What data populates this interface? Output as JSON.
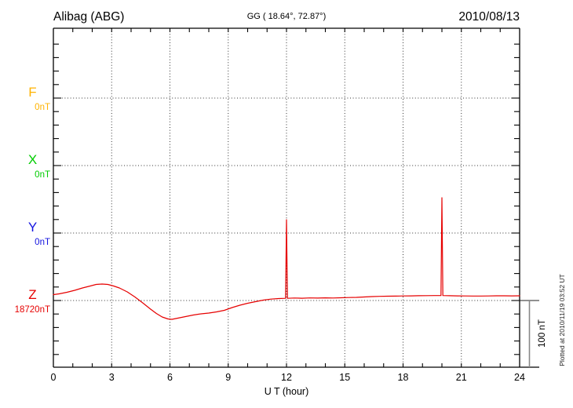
{
  "header": {
    "station": "Alibag (ABG)",
    "coordinates": "GG ( 18.64°, 72.87°)",
    "date": "2010/08/13"
  },
  "components": [
    {
      "label": "F",
      "value": "0nT",
      "color": "#FFB300"
    },
    {
      "label": "X",
      "value": "0nT",
      "color": "#00CC00"
    },
    {
      "label": "Y",
      "value": "0nT",
      "color": "#1414E0"
    },
    {
      "label": "Z",
      "value": "18720nT",
      "color": "#E60000"
    }
  ],
  "x_axis": {
    "title": "U T (hour)",
    "tick_labels": [
      0,
      3,
      6,
      9,
      12,
      15,
      18,
      21,
      24
    ],
    "hours": 24
  },
  "scale_bar": {
    "label": "100 nT",
    "nT": 100
  },
  "plotted_note": "Plotted at 2010/11/19 03:52 UT",
  "chart_data": {
    "type": "line",
    "title": "Alibag (ABG) magnetogram 2010/08/13",
    "xlabel": "U T (hour)",
    "x_range": [
      0,
      24
    ],
    "grid": "dotted vertical lines every 3 hours; dotted horizontal baselines for F, X, Y, Z",
    "baseline_values": {
      "F": "0nT",
      "X": "0nT",
      "Y": "0nT",
      "Z": "18720nT"
    },
    "scale_bar_nT": 100,
    "series": [
      {
        "name": "Z",
        "color": "#E60000",
        "baseline_nT": 18720,
        "units": "nT offset from baseline",
        "points_hour_dnT": [
          [
            0,
            7.5
          ],
          [
            0.3,
            8.5
          ],
          [
            0.7,
            10.5
          ],
          [
            1.1,
            13
          ],
          [
            1.5,
            16
          ],
          [
            1.9,
            18.5
          ],
          [
            2.2,
            20.5
          ],
          [
            2.5,
            21
          ],
          [
            2.8,
            20.5
          ],
          [
            3.1,
            18.5
          ],
          [
            3.4,
            16
          ],
          [
            3.8,
            11
          ],
          [
            4.2,
            4.5
          ],
          [
            4.6,
            -3
          ],
          [
            5.0,
            -11
          ],
          [
            5.3,
            -16.5
          ],
          [
            5.6,
            -21
          ],
          [
            5.9,
            -23.5
          ],
          [
            6.1,
            -24
          ],
          [
            6.4,
            -22.5
          ],
          [
            6.8,
            -20.5
          ],
          [
            7.2,
            -18.5
          ],
          [
            7.6,
            -17
          ],
          [
            8.0,
            -16
          ],
          [
            8.4,
            -14.5
          ],
          [
            8.8,
            -12.5
          ],
          [
            9.2,
            -9
          ],
          [
            9.6,
            -6
          ],
          [
            10.0,
            -3.5
          ],
          [
            10.4,
            -1.5
          ],
          [
            10.8,
            0.5
          ],
          [
            11.2,
            1.8
          ],
          [
            11.6,
            2.5
          ],
          [
            11.95,
            2.8
          ],
          [
            12.0,
            103
          ],
          [
            12.05,
            2.8
          ],
          [
            12.4,
            3.2
          ],
          [
            12.8,
            2.9
          ],
          [
            13.2,
            3.3
          ],
          [
            13.6,
            3.1
          ],
          [
            14.0,
            3.4
          ],
          [
            14.4,
            3.2
          ],
          [
            14.8,
            3.5
          ],
          [
            15.2,
            3.8
          ],
          [
            15.6,
            4.0
          ],
          [
            16.0,
            4.5
          ],
          [
            16.4,
            5.0
          ],
          [
            16.8,
            5.3
          ],
          [
            17.2,
            5.5
          ],
          [
            17.6,
            5.6
          ],
          [
            18.0,
            5.8
          ],
          [
            18.4,
            5.9
          ],
          [
            18.8,
            6.1
          ],
          [
            19.2,
            6.2
          ],
          [
            19.6,
            6.3
          ],
          [
            19.95,
            6.3
          ],
          [
            20.0,
            131
          ],
          [
            20.05,
            6.3
          ],
          [
            20.4,
            6.1
          ],
          [
            20.8,
            5.9
          ],
          [
            21.2,
            5.8
          ],
          [
            21.6,
            5.7
          ],
          [
            22.0,
            5.7
          ],
          [
            22.4,
            5.8
          ],
          [
            22.8,
            6.0
          ],
          [
            23.2,
            6.0
          ],
          [
            23.6,
            5.9
          ],
          [
            24.0,
            6.0
          ]
        ]
      }
    ]
  }
}
